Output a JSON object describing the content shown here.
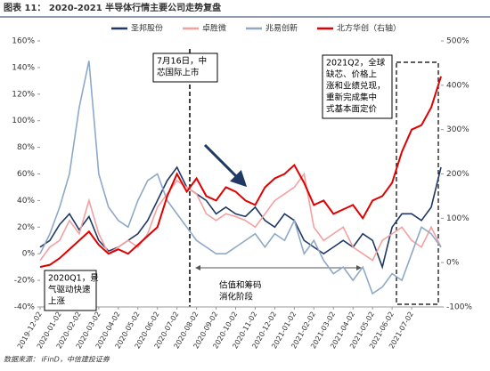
{
  "chart_data": {
    "type": "line",
    "title": "图表 11：  2020-2021 半导体行情主要公司走势复盘",
    "source": "数据来源：  iFinD，中信建投证券",
    "categories": [
      "2019-12-02",
      null,
      "2020-01-02",
      null,
      "2020-02-02",
      null,
      "2020-03-02",
      null,
      "2020-04-02",
      null,
      "2020-05-02",
      null,
      "2020-06-02",
      null,
      "2020-07-02",
      null,
      "2020-08-02",
      null,
      "2020-09-02",
      null,
      "2020-10-02",
      null,
      "2020-11-02",
      null,
      "2020-12-02",
      null,
      "2021-01-02",
      null,
      "2021-02-02",
      null,
      "2021-03-02",
      null,
      "2021-04-02",
      null,
      "2021-05-02",
      null,
      "2021-06-02",
      null,
      "2021-07-02",
      null,
      null,
      null
    ],
    "ylim": [
      -40,
      160
    ],
    "yticks": [
      {
        "value": -40,
        "label": "-40%"
      },
      {
        "value": -20,
        "label": "-20%"
      },
      {
        "value": 0,
        "label": "0%"
      },
      {
        "value": 20,
        "label": "20%"
      },
      {
        "value": 40,
        "label": "40%"
      },
      {
        "value": 60,
        "label": "60%"
      },
      {
        "value": 80,
        "label": "80%"
      },
      {
        "value": 100,
        "label": "100%"
      },
      {
        "value": 120,
        "label": "120%"
      },
      {
        "value": 140,
        "label": "140%"
      },
      {
        "value": 160,
        "label": "160%"
      }
    ],
    "y2lim": [
      -100,
      500
    ],
    "y2ticks": [
      {
        "value": -100,
        "label": "-100%"
      },
      {
        "value": 0,
        "label": "0%"
      },
      {
        "value": 100,
        "label": "100%"
      },
      {
        "value": 200,
        "label": "200%"
      },
      {
        "value": 300,
        "label": "300%"
      },
      {
        "value": 400,
        "label": "400%"
      },
      {
        "value": 500,
        "label": "500%"
      }
    ],
    "series": [
      {
        "name": "圣邦股份",
        "color": "#1f3864",
        "values": [
          5,
          10,
          22,
          30,
          18,
          28,
          10,
          2,
          5,
          10,
          15,
          25,
          40,
          55,
          65,
          50,
          45,
          40,
          30,
          35,
          30,
          28,
          35,
          25,
          20,
          30,
          25,
          10,
          5,
          0,
          5,
          10,
          5,
          15,
          10,
          -10,
          20,
          30,
          30,
          25,
          35,
          65
        ]
      },
      {
        "name": "卓胜微",
        "color": "#f4a0a0",
        "values": [
          -5,
          5,
          10,
          25,
          15,
          40,
          15,
          0,
          5,
          10,
          5,
          15,
          35,
          45,
          55,
          50,
          45,
          30,
          25,
          30,
          28,
          25,
          20,
          30,
          40,
          45,
          50,
          60,
          20,
          10,
          15,
          20,
          5,
          0,
          -5,
          10,
          15,
          20,
          10,
          5,
          20,
          5
        ]
      },
      {
        "name": "兆易创新",
        "color": "#8ea9c8",
        "values": [
          0,
          15,
          35,
          60,
          110,
          145,
          60,
          35,
          25,
          20,
          40,
          55,
          60,
          40,
          30,
          20,
          10,
          5,
          0,
          0,
          5,
          10,
          15,
          5,
          15,
          10,
          25,
          0,
          10,
          -5,
          -15,
          -10,
          -20,
          -10,
          -30,
          -25,
          -15,
          -20,
          0,
          20,
          15,
          5
        ]
      },
      {
        "name": "北方华创（右轴）",
        "color": "#e00000",
        "axis": "y2",
        "values": [
          -10,
          -5,
          10,
          30,
          50,
          70,
          40,
          20,
          30,
          20,
          40,
          60,
          80,
          150,
          200,
          160,
          190,
          150,
          140,
          170,
          160,
          140,
          130,
          170,
          190,
          200,
          220,
          180,
          130,
          140,
          110,
          120,
          130,
          100,
          140,
          150,
          180,
          250,
          300,
          310,
          350,
          420
        ]
      }
    ],
    "annotations": [
      {
        "lines": [
          "7月16日，中",
          "芯国际上市"
        ]
      },
      {
        "lines": [
          "2021Q2，全球",
          "缺芯、价格上",
          "涨和业绩兑现，",
          "重新完成集中",
          "式基本面定价"
        ]
      },
      {
        "lines": [
          "2020Q1，景",
          "气驱动快速",
          "上涨"
        ]
      },
      {
        "lines": [
          "估值和筹码",
          "消化阶段"
        ]
      }
    ]
  }
}
